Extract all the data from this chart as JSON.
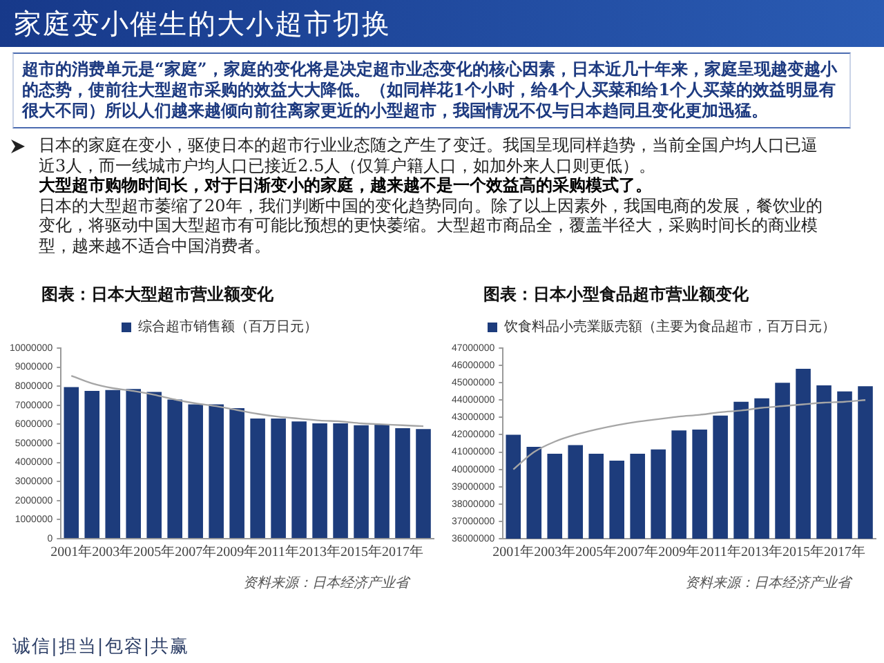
{
  "chart_data": [
    {
      "type": "other",
      "title": "家庭变小催生的大小超市切换",
      "subtitle": "超市的消费单元是“家庭”，家庭的变化将是决定超市业态变化的核心因素，日本近几十年来，家庭呈现越变越小的态势，使前往大型超市采购的效益大大降低。（如同样花1个小时，给4个人买菜和给1个人买菜的效益明显有很大不同）所以人们越来越倾向前往离家更近的小型超市，我国情况不仅与日本趋同且变化更加迅猛。",
      "annotations": [
        "日本的家庭在变小，驱使日本的超市行业业态随之产生了变迁。我国呈现同样趋势，当前全国户均人口已逼近3人，而一线城市户均人口已接近2.5人（仅算户籍人口，如加外来人口则更低）。",
        "大型超市购物时间长，对于日渐变小的家庭，越来越不是一个效益高的采购模式了。",
        "日本的大型超市萎缩了20年，我们判断中国的变化趋势同向。除了以上因素外，我国电商的发展，餐饮业的变化，将驱动中国大型超市有可能比预想的更快萎缩。大型超市商品全，覆盖半径大，采购时间长的商业模型，越来越不适合中国消费者。",
        "诚信|担当|包容|共赢"
      ]
    },
    {
      "type": "bar",
      "title": "图表：日本大型超市营业额变化",
      "categories": [
        "2001年",
        null,
        "2003年",
        null,
        "2005年",
        null,
        "2007年",
        null,
        "2009年",
        null,
        "2011年",
        null,
        "2013年",
        null,
        "2015年",
        null,
        "2017年",
        null
      ],
      "series": [
        {
          "name": "综合超市销售额（百万日元）",
          "color": "#1d3c7c",
          "values": [
            7950000,
            7750000,
            7800000,
            7850000,
            7700000,
            7300000,
            7050000,
            7050000,
            6850000,
            6300000,
            6300000,
            6150000,
            6050000,
            6050000,
            5950000,
            6000000,
            5800000,
            5750000
          ]
        },
        {
          "type": "line",
          "color": "#a6a6a6",
          "values": [
            8550000,
            8150000,
            7900000,
            7750000,
            7550000,
            7300000,
            7100000,
            6950000,
            6750000,
            6550000,
            6400000,
            6300000,
            6200000,
            6150000,
            6050000,
            6000000,
            5950000,
            5900000
          ]
        }
      ],
      "ylim": [
        0,
        10000000
      ],
      "yticks": [
        0,
        1000000,
        2000000,
        3000000,
        4000000,
        5000000,
        6000000,
        7000000,
        8000000,
        9000000,
        10000000
      ],
      "legend": "top",
      "annotations": [
        "资料来源：日本经济产业省"
      ]
    },
    {
      "type": "bar",
      "title": "图表：日本小型食品超市营业额变化",
      "categories": [
        "2001年",
        null,
        "2003年",
        null,
        "2005年",
        null,
        "2007年",
        null,
        "2009年",
        null,
        "2011年",
        null,
        "2013年",
        null,
        "2015年",
        null,
        "2017年",
        null
      ],
      "series": [
        {
          "name": "饮食料品小売業販売額（主要为食品超市，百万日元）",
          "color": "#1d3c7c",
          "values": [
            42000000,
            41300000,
            40900000,
            41400000,
            40900000,
            40500000,
            40900000,
            41150000,
            42250000,
            42300000,
            43100000,
            43900000,
            44100000,
            45000000,
            45800000,
            44850000,
            44500000,
            44800000
          ]
        },
        {
          "type": "line",
          "color": "#a6a6a6",
          "values": [
            40000000,
            41000000,
            41600000,
            42000000,
            42300000,
            42550000,
            42750000,
            42900000,
            43050000,
            43150000,
            43300000,
            43400000,
            43550000,
            43650000,
            43750000,
            43850000,
            43900000,
            44000000
          ]
        }
      ],
      "ylim": [
        36000000,
        47000000
      ],
      "yticks": [
        36000000,
        37000000,
        38000000,
        39000000,
        40000000,
        41000000,
        42000000,
        43000000,
        44000000,
        45000000,
        46000000,
        47000000
      ],
      "legend": "top",
      "annotations": [
        "资料来源：日本经济产业省"
      ]
    }
  ]
}
